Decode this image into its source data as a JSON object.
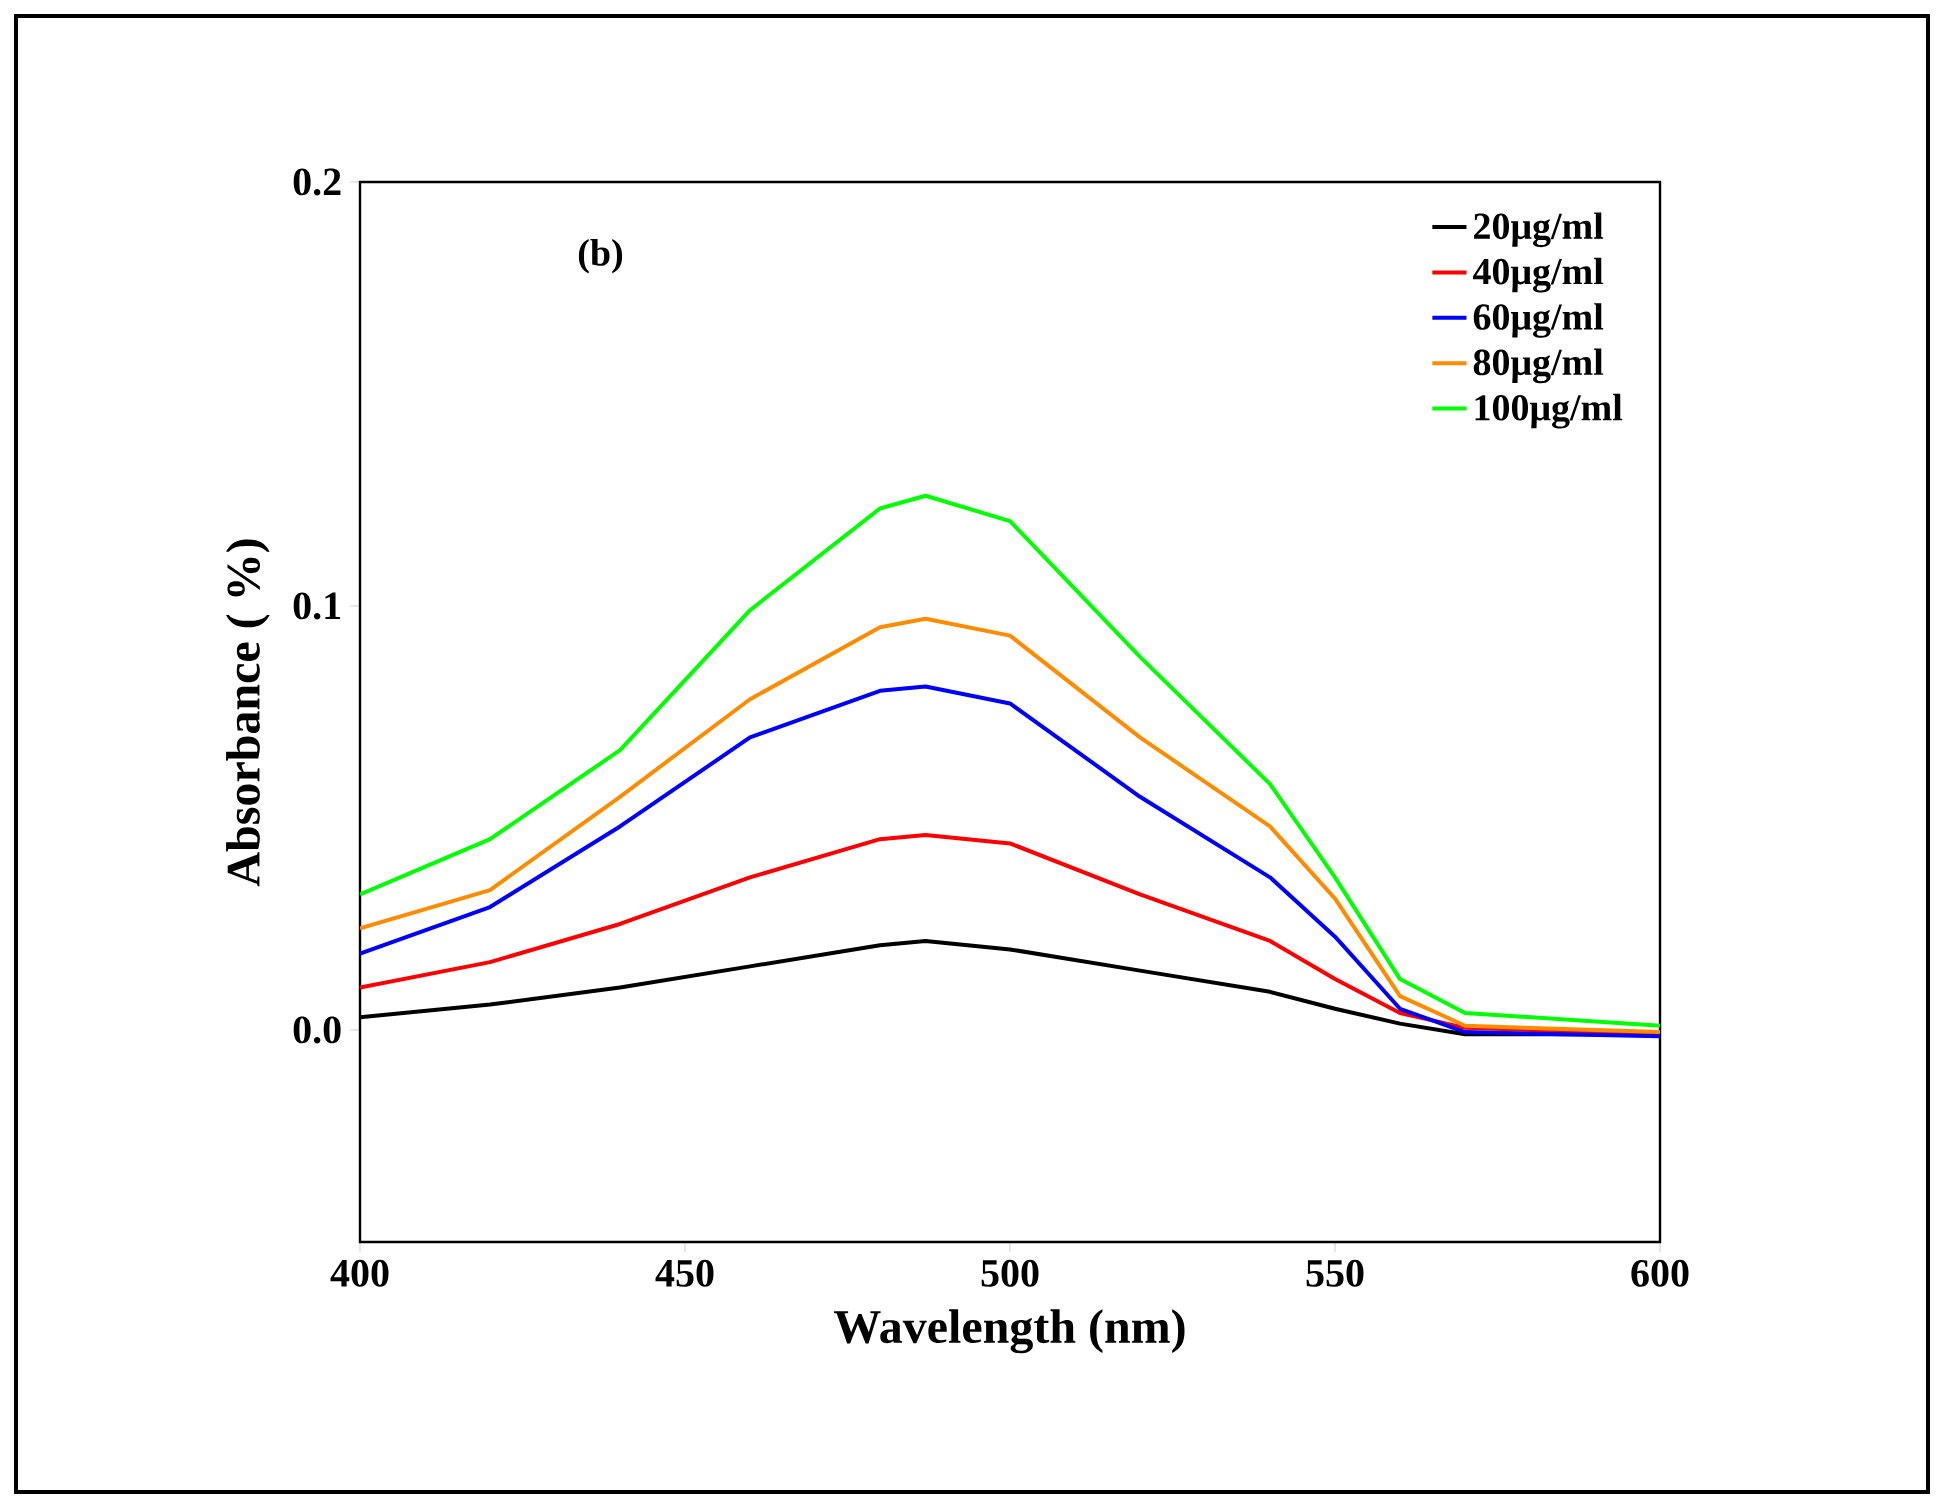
{
  "chart_data": {
    "type": "line",
    "xlabel": "Wavelength (nm)",
    "ylabel": "Absorbance ( %)",
    "annotations": [
      "(b)"
    ],
    "x": [
      400,
      420,
      440,
      460,
      480,
      487,
      500,
      520,
      540,
      550,
      560,
      570,
      600
    ],
    "series": [
      {
        "name": "20μg/ml",
        "color": "#000000",
        "values": [
          0.003,
          0.006,
          0.01,
          0.015,
          0.02,
          0.021,
          0.019,
          0.014,
          0.009,
          0.005,
          0.0015,
          -0.001,
          -0.001
        ]
      },
      {
        "name": "40μg/ml",
        "color": "#ff0000",
        "values": [
          0.01,
          0.016,
          0.025,
          0.036,
          0.045,
          0.046,
          0.044,
          0.032,
          0.021,
          0.012,
          0.004,
          0.0005,
          -0.001
        ]
      },
      {
        "name": "60μg/ml",
        "color": "#0000ff",
        "values": [
          0.018,
          0.029,
          0.048,
          0.069,
          0.08,
          0.081,
          0.077,
          0.055,
          0.036,
          0.022,
          0.005,
          -0.0005,
          -0.0015
        ]
      },
      {
        "name": "80μg/ml",
        "color": "#ff8c00",
        "values": [
          0.024,
          0.033,
          0.055,
          0.078,
          0.095,
          0.097,
          0.093,
          0.069,
          0.048,
          0.031,
          0.008,
          0.001,
          -0.0005
        ]
      },
      {
        "name": "100μg/ml",
        "color": "#00ff00",
        "values": [
          0.032,
          0.045,
          0.066,
          0.099,
          0.123,
          0.126,
          0.12,
          0.088,
          0.058,
          0.036,
          0.012,
          0.004,
          0.001
        ]
      }
    ],
    "xlim": [
      400,
      600
    ],
    "ylim": [
      -0.05,
      0.2
    ],
    "xticks": [
      400,
      450,
      500,
      550,
      600
    ],
    "yticks": [
      {
        "value": 0,
        "label": "0.0"
      },
      {
        "value": 0.1,
        "label": "0.1"
      },
      {
        "value": 0.2,
        "label": "0.2"
      }
    ],
    "legend": "top right",
    "grid": false,
    "marker": "none",
    "line_style": "solid"
  }
}
